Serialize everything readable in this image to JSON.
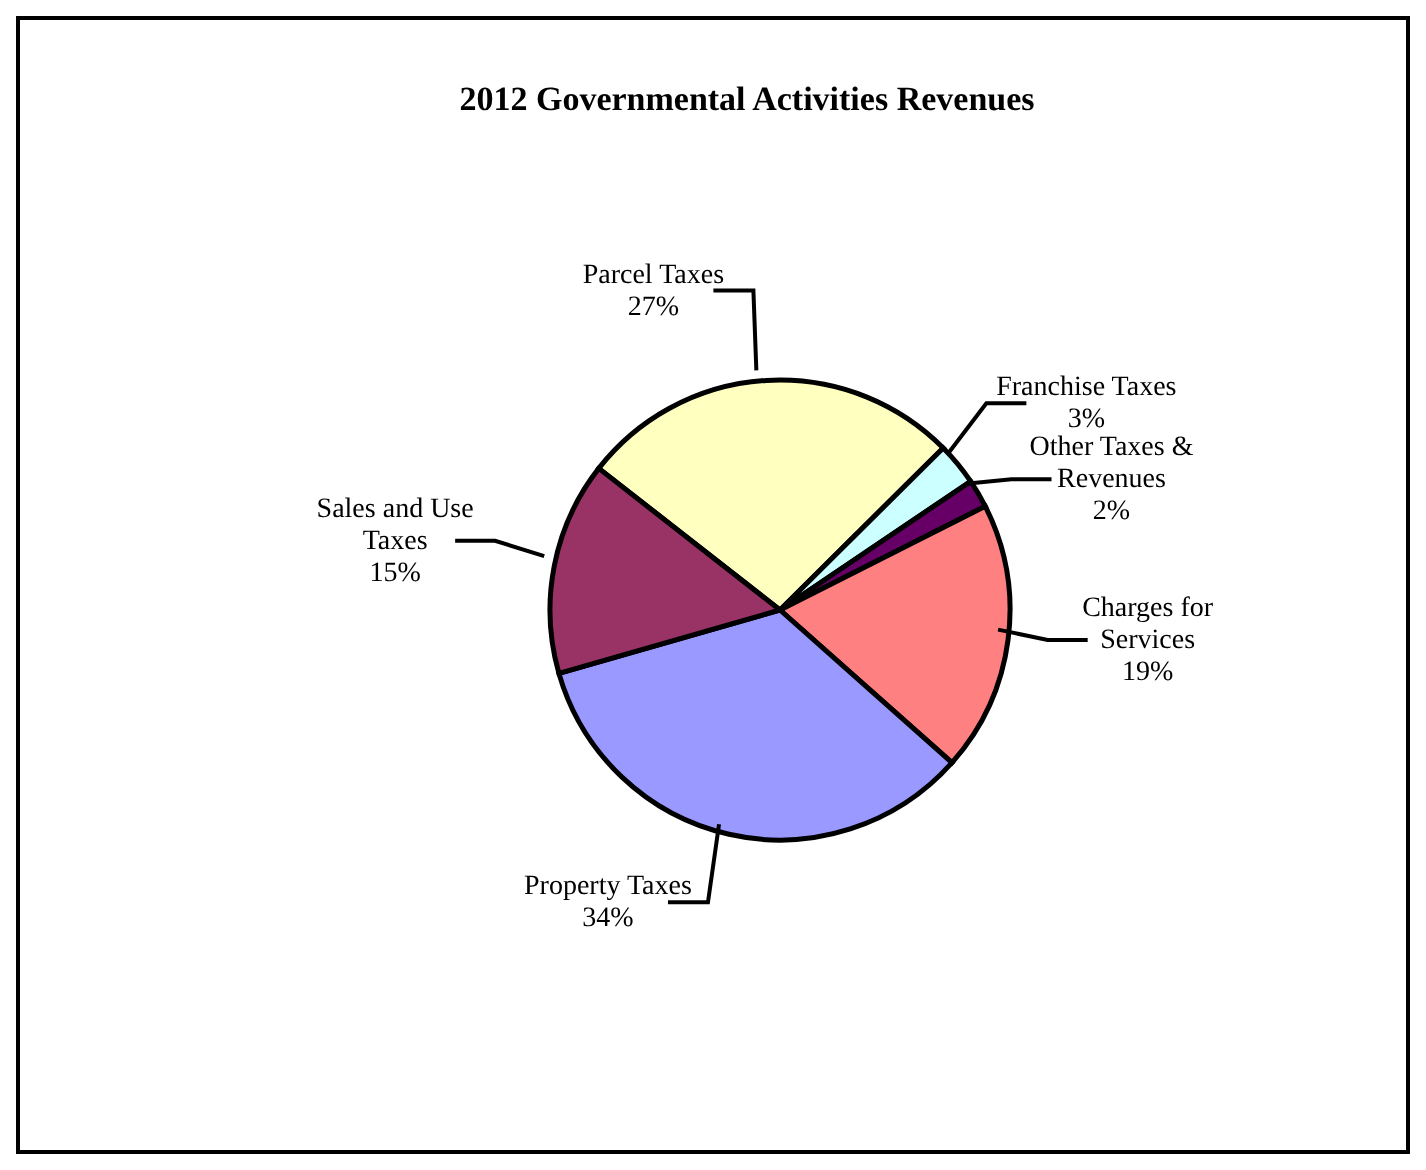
{
  "chart_data": {
    "type": "pie",
    "title": "2012 Governmental Activities Revenues",
    "categories": [
      "Parcel Taxes",
      "Franchise Taxes",
      "Other Taxes & Revenues",
      "Charges for Services",
      "Property Taxes",
      "Sales and Use Taxes"
    ],
    "values": [
      27,
      3,
      2,
      19,
      34,
      15
    ],
    "value_labels": [
      "27%",
      "3%",
      "2%",
      "19%",
      "34%",
      "15%"
    ],
    "colors": [
      "#ffffc0",
      "#ccffff",
      "#660066",
      "#ff8080",
      "#9999ff",
      "#993366"
    ],
    "legend": false
  }
}
